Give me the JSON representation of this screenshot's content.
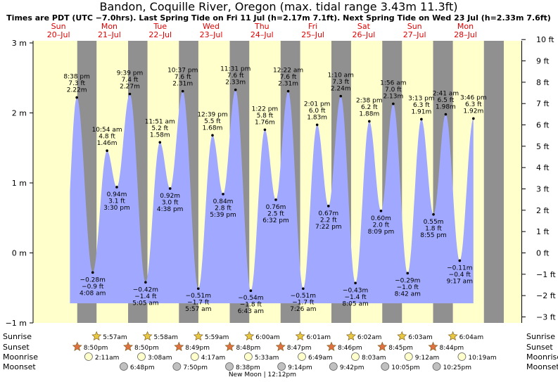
{
  "header": {
    "title": "Bandon, Coquille River, Oregon (max. tidal range 3.43m 11.3ft)",
    "subtitle": "Times are PDT (UTC −7.0hrs). Last Spring Tide on Fri 11 Jul (h=2.17m 7.1ft). Next Spring Tide on Wed 23 Jul (h=2.33m 7.6ft)"
  },
  "colors": {
    "day_background": "#ffffcc",
    "night_background": "#909090",
    "tide_fill": "#a0a8ff",
    "day_label": "#e00000",
    "sun": "#e8c840",
    "sunset_star": "#e07040",
    "moon_rise": "#ffffcc",
    "moon_set": "#c0c0c0"
  },
  "chart_data": {
    "type": "area",
    "title": "Bandon, Coquille River, Oregon (max. tidal range 3.43m 11.3ft)",
    "days": [
      {
        "dow": "Sun",
        "date": "20–Jul"
      },
      {
        "dow": "Mon",
        "date": "21–Jul"
      },
      {
        "dow": "Tue",
        "date": "22–Jul"
      },
      {
        "dow": "Wed",
        "date": "23–Jul"
      },
      {
        "dow": "Thu",
        "date": "24–Jul"
      },
      {
        "dow": "Fri",
        "date": "25–Jul"
      },
      {
        "dow": "Sat",
        "date": "26–Jul"
      },
      {
        "dow": "Sun",
        "date": "27–Jul"
      },
      {
        "dow": "Mon",
        "date": "28–Jul"
      }
    ],
    "y_left": {
      "unit": "m",
      "range": [
        -1.05,
        3.05
      ],
      "ticks": [
        {
          "value": 3,
          "label": "3 m"
        },
        {
          "value": 2,
          "label": "2 m"
        },
        {
          "value": 1,
          "label": "1 m"
        },
        {
          "value": 0,
          "label": "0 m"
        },
        {
          "value": -1,
          "label": "−1 m"
        }
      ]
    },
    "y_right": {
      "unit": "ft",
      "ticks": [
        {
          "value": 10,
          "label": "10 ft"
        },
        {
          "value": 9,
          "label": "9 ft"
        },
        {
          "value": 8,
          "label": "8 ft"
        },
        {
          "value": 7,
          "label": "7 ft"
        },
        {
          "value": 6,
          "label": "6 ft"
        },
        {
          "value": 5,
          "label": "5 ft"
        },
        {
          "value": 4,
          "label": "4 ft"
        },
        {
          "value": 3,
          "label": "3 ft"
        },
        {
          "value": 2,
          "label": "2 ft"
        },
        {
          "value": 1,
          "label": "1 ft"
        },
        {
          "value": 0,
          "label": "0 ft"
        },
        {
          "value": -1,
          "label": "−1 ft"
        },
        {
          "value": -2,
          "label": "−2 ft"
        },
        {
          "value": -3,
          "label": "−3 ft"
        }
      ]
    },
    "nights": [
      {
        "start": "2025-07-20 20:50",
        "end": "2025-07-21 05:57"
      },
      {
        "start": "2025-07-21 20:50",
        "end": "2025-07-22 05:58"
      },
      {
        "start": "2025-07-22 20:49",
        "end": "2025-07-23 05:59"
      },
      {
        "start": "2025-07-23 20:48",
        "end": "2025-07-24 06:00"
      },
      {
        "start": "2025-07-24 20:47",
        "end": "2025-07-25 06:01"
      },
      {
        "start": "2025-07-25 20:46",
        "end": "2025-07-26 06:02"
      },
      {
        "start": "2025-07-26 20:45",
        "end": "2025-07-27 06:03"
      },
      {
        "start": "2025-07-27 20:44",
        "end": "2025-07-28 06:04"
      },
      {
        "start": "2025-07-28 20:43",
        "end": "2025-07-29 06:05"
      }
    ],
    "tides": [
      {
        "time": "2025-07-20 20:38",
        "label": "8:38 pm",
        "height_m": 2.22,
        "height_ft": "7.3 ft",
        "height_m_label": "2.22 m",
        "kind": "high"
      },
      {
        "time": "2025-07-21 04:08",
        "label": "4:08 am",
        "height_m": -0.28,
        "height_ft": "−0.9 ft",
        "height_m_label": "−0.28 m",
        "kind": "low"
      },
      {
        "time": "2025-07-21 10:54",
        "label": "10:54 am",
        "height_m": 1.46,
        "height_ft": "4.8 ft",
        "height_m_label": "1.46 m",
        "kind": "high"
      },
      {
        "time": "2025-07-21 15:30",
        "label": "3:30 pm",
        "height_m": 0.94,
        "height_ft": "3.1 ft",
        "height_m_label": "0.94 m",
        "kind": "low"
      },
      {
        "time": "2025-07-21 21:39",
        "label": "9:39 pm",
        "height_m": 2.27,
        "height_ft": "7.4 ft",
        "height_m_label": "2.27 m",
        "kind": "high"
      },
      {
        "time": "2025-07-22 05:05",
        "label": "5:05 am",
        "height_m": -0.42,
        "height_ft": "−1.4 ft",
        "height_m_label": "−0.42 m",
        "kind": "low"
      },
      {
        "time": "2025-07-22 11:51",
        "label": "11:51 am",
        "height_m": 1.58,
        "height_ft": "5.2 ft",
        "height_m_label": "1.58 m",
        "kind": "high"
      },
      {
        "time": "2025-07-22 16:38",
        "label": "4:38 pm",
        "height_m": 0.92,
        "height_ft": "3.0 ft",
        "height_m_label": "0.92 m",
        "kind": "low"
      },
      {
        "time": "2025-07-22 22:37",
        "label": "10:37 pm",
        "height_m": 2.31,
        "height_ft": "7.6 ft",
        "height_m_label": "2.31 m",
        "kind": "high"
      },
      {
        "time": "2025-07-23 05:57",
        "label": "5:57 am",
        "height_m": -0.51,
        "height_ft": "−1.7 ft",
        "height_m_label": "−0.51 m",
        "kind": "low"
      },
      {
        "time": "2025-07-23 12:39",
        "label": "12:39 pm",
        "height_m": 1.68,
        "height_ft": "5.5 ft",
        "height_m_label": "1.68 m",
        "kind": "high"
      },
      {
        "time": "2025-07-23 17:39",
        "label": "5:39 pm",
        "height_m": 0.84,
        "height_ft": "2.8 ft",
        "height_m_label": "0.84 m",
        "kind": "low"
      },
      {
        "time": "2025-07-23 23:31",
        "label": "11:31 pm",
        "height_m": 2.33,
        "height_ft": "7.6 ft",
        "height_m_label": "2.33 m",
        "kind": "high"
      },
      {
        "time": "2025-07-24 06:43",
        "label": "6:43 am",
        "height_m": -0.54,
        "height_ft": "−1.8 ft",
        "height_m_label": "−0.54 m",
        "kind": "low"
      },
      {
        "time": "2025-07-24 13:22",
        "label": "1:22 pm",
        "height_m": 1.76,
        "height_ft": "5.8 ft",
        "height_m_label": "1.76 m",
        "kind": "high"
      },
      {
        "time": "2025-07-24 18:32",
        "label": "6:32 pm",
        "height_m": 0.76,
        "height_ft": "2.5 ft",
        "height_m_label": "0.76 m",
        "kind": "low"
      },
      {
        "time": "2025-07-25 00:22",
        "label": "12:22 am",
        "height_m": 2.31,
        "height_ft": "7.6 ft",
        "height_m_label": "2.31 m",
        "kind": "high"
      },
      {
        "time": "2025-07-25 07:26",
        "label": "7:26 am",
        "height_m": -0.51,
        "height_ft": "−1.7 ft",
        "height_m_label": "−0.51 m",
        "kind": "low"
      },
      {
        "time": "2025-07-25 14:01",
        "label": "2:01 pm",
        "height_m": 1.83,
        "height_ft": "6.0 ft",
        "height_m_label": "1.83 m",
        "kind": "high"
      },
      {
        "time": "2025-07-25 19:22",
        "label": "7:22 pm",
        "height_m": 0.67,
        "height_ft": "2.2 ft",
        "height_m_label": "0.67 m",
        "kind": "low"
      },
      {
        "time": "2025-07-26 01:10",
        "label": "1:10 am",
        "height_m": 2.24,
        "height_ft": "7.3 ft",
        "height_m_label": "2.24 m",
        "kind": "high"
      },
      {
        "time": "2025-07-26 08:05",
        "label": "8:05 am",
        "height_m": -0.43,
        "height_ft": "−1.4 ft",
        "height_m_label": "−0.43 m",
        "kind": "low"
      },
      {
        "time": "2025-07-26 14:38",
        "label": "2:38 pm",
        "height_m": 1.88,
        "height_ft": "6.2 ft",
        "height_m_label": "1.88 m",
        "kind": "high"
      },
      {
        "time": "2025-07-26 20:09",
        "label": "8:09 pm",
        "height_m": 0.6,
        "height_ft": "2.0 ft",
        "height_m_label": "0.60 m",
        "kind": "low"
      },
      {
        "time": "2025-07-27 01:56",
        "label": "1:56 am",
        "height_m": 2.13,
        "height_ft": "7.0 ft",
        "height_m_label": "2.13 m",
        "kind": "high"
      },
      {
        "time": "2025-07-27 08:42",
        "label": "8:42 am",
        "height_m": -0.29,
        "height_ft": "−1.0 ft",
        "height_m_label": "−0.29 m",
        "kind": "low"
      },
      {
        "time": "2025-07-27 15:13",
        "label": "3:13 pm",
        "height_m": 1.91,
        "height_ft": "6.3 ft",
        "height_m_label": "1.91 m",
        "kind": "high"
      },
      {
        "time": "2025-07-27 20:55",
        "label": "8:55 pm",
        "height_m": 0.55,
        "height_ft": "1.8 ft",
        "height_m_label": "0.55 m",
        "kind": "low"
      },
      {
        "time": "2025-07-28 02:41",
        "label": "2:41 am",
        "height_m": 1.98,
        "height_ft": "6.5 ft",
        "height_m_label": "1.98 m",
        "kind": "high"
      },
      {
        "time": "2025-07-28 09:17",
        "label": "9:17 am",
        "height_m": -0.11,
        "height_ft": "−0.4 ft",
        "height_m_label": "−0.11 m",
        "kind": "low"
      },
      {
        "time": "2025-07-28 15:46",
        "label": "3:46 pm",
        "height_m": 1.92,
        "height_ft": "6.3 ft",
        "height_m_label": "1.92 m",
        "kind": "high"
      }
    ],
    "rows": {
      "labels": {
        "sunrise": "Sunrise",
        "sunset": "Sunset",
        "moonrise": "Moonrise",
        "moonset": "Moonset"
      },
      "sunrise": [
        {
          "time": "2025-07-21 05:57",
          "label": "5:57am"
        },
        {
          "time": "2025-07-22 05:58",
          "label": "5:58am"
        },
        {
          "time": "2025-07-23 05:59",
          "label": "5:59am"
        },
        {
          "time": "2025-07-24 06:00",
          "label": "6:00am"
        },
        {
          "time": "2025-07-25 06:01",
          "label": "6:01am"
        },
        {
          "time": "2025-07-26 06:02",
          "label": "6:02am"
        },
        {
          "time": "2025-07-27 06:03",
          "label": "6:03am"
        },
        {
          "time": "2025-07-28 06:04",
          "label": "6:04am"
        }
      ],
      "sunset": [
        {
          "time": "2025-07-20 20:50",
          "label": "8:50pm"
        },
        {
          "time": "2025-07-21 20:50",
          "label": "8:50pm"
        },
        {
          "time": "2025-07-22 20:49",
          "label": "8:49pm"
        },
        {
          "time": "2025-07-23 20:48",
          "label": "8:48pm"
        },
        {
          "time": "2025-07-24 20:47",
          "label": "8:47pm"
        },
        {
          "time": "2025-07-25 20:46",
          "label": "8:46pm"
        },
        {
          "time": "2025-07-26 20:45",
          "label": "8:45pm"
        },
        {
          "time": "2025-07-27 20:44",
          "label": "8:44pm"
        }
      ],
      "moonrise": [
        {
          "time": "2025-07-21 02:11",
          "label": "2:11am"
        },
        {
          "time": "2025-07-22 03:08",
          "label": "3:08am"
        },
        {
          "time": "2025-07-23 04:17",
          "label": "4:17am"
        },
        {
          "time": "2025-07-24 05:33",
          "label": "5:33am"
        },
        {
          "time": "2025-07-25 06:49",
          "label": "6:49am"
        },
        {
          "time": "2025-07-26 08:03",
          "label": "8:03am"
        },
        {
          "time": "2025-07-27 09:12",
          "label": "9:12am"
        },
        {
          "time": "2025-07-28 10:19",
          "label": "10:19am"
        }
      ],
      "moonset": [
        {
          "time": "2025-07-21 18:48",
          "label": "6:48pm"
        },
        {
          "time": "2025-07-22 19:50",
          "label": "7:50pm"
        },
        {
          "time": "2025-07-23 20:38",
          "label": "8:38pm"
        },
        {
          "time": "2025-07-24 21:14",
          "label": "9:14pm"
        },
        {
          "time": "2025-07-25 21:42",
          "label": "9:42pm"
        },
        {
          "time": "2025-07-26 22:05",
          "label": "10:05pm"
        },
        {
          "time": "2025-07-27 22:25",
          "label": "10:25pm"
        }
      ],
      "moon_phase": {
        "time": "2025-07-24 12:12",
        "label": "New Moon | 12:12pm"
      }
    }
  }
}
